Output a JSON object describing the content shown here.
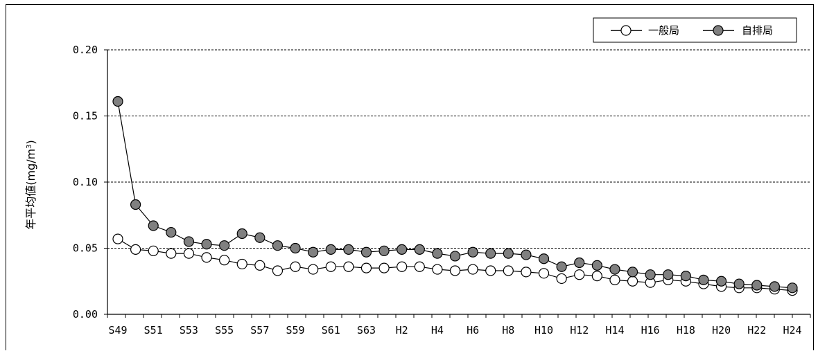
{
  "chart_data": {
    "type": "line",
    "title": "",
    "ylabel": "年平均値(mg/m",
    "ylabel_sup": "3",
    "ylabel_close": ")",
    "ylim": [
      0,
      0.2
    ],
    "yticks": [
      "0.00",
      "0.05",
      "0.10",
      "0.15",
      "0.20"
    ],
    "ytick_values": [
      0,
      0.05,
      0.1,
      0.15,
      0.2
    ],
    "x_tick_labels": [
      "S49",
      "S51",
      "S53",
      "S55",
      "S57",
      "S59",
      "S61",
      "S63",
      "H2",
      "H4",
      "H6",
      "H8",
      "H10",
      "H12",
      "H14",
      "H16",
      "H18",
      "H20",
      "H22",
      "H24"
    ],
    "legend_position": "top-right",
    "grid": "horizontal dashed",
    "series": [
      {
        "name": "一般局",
        "marker_fill": "#ffffff",
        "values": [
          0.057,
          0.049,
          0.048,
          0.046,
          0.046,
          0.043,
          0.041,
          0.038,
          0.037,
          0.033,
          0.036,
          0.034,
          0.036,
          0.036,
          0.035,
          0.035,
          0.036,
          0.036,
          0.034,
          0.033,
          0.034,
          0.033,
          0.033,
          0.032,
          0.031,
          0.027,
          0.03,
          0.029,
          0.026,
          0.025,
          0.024,
          0.026,
          0.025,
          0.023,
          0.021,
          0.02,
          0.02,
          0.019,
          0.018
        ]
      },
      {
        "name": "自排局",
        "marker_fill": "#808080",
        "values": [
          0.161,
          0.083,
          0.067,
          0.062,
          0.055,
          0.053,
          0.052,
          0.061,
          0.058,
          0.052,
          0.05,
          0.047,
          0.049,
          0.049,
          0.047,
          0.048,
          0.049,
          0.049,
          0.046,
          0.044,
          0.047,
          0.046,
          0.046,
          0.045,
          0.042,
          0.036,
          0.039,
          0.037,
          0.034,
          0.032,
          0.03,
          0.03,
          0.029,
          0.026,
          0.025,
          0.023,
          0.022,
          0.021,
          0.02
        ]
      }
    ]
  }
}
